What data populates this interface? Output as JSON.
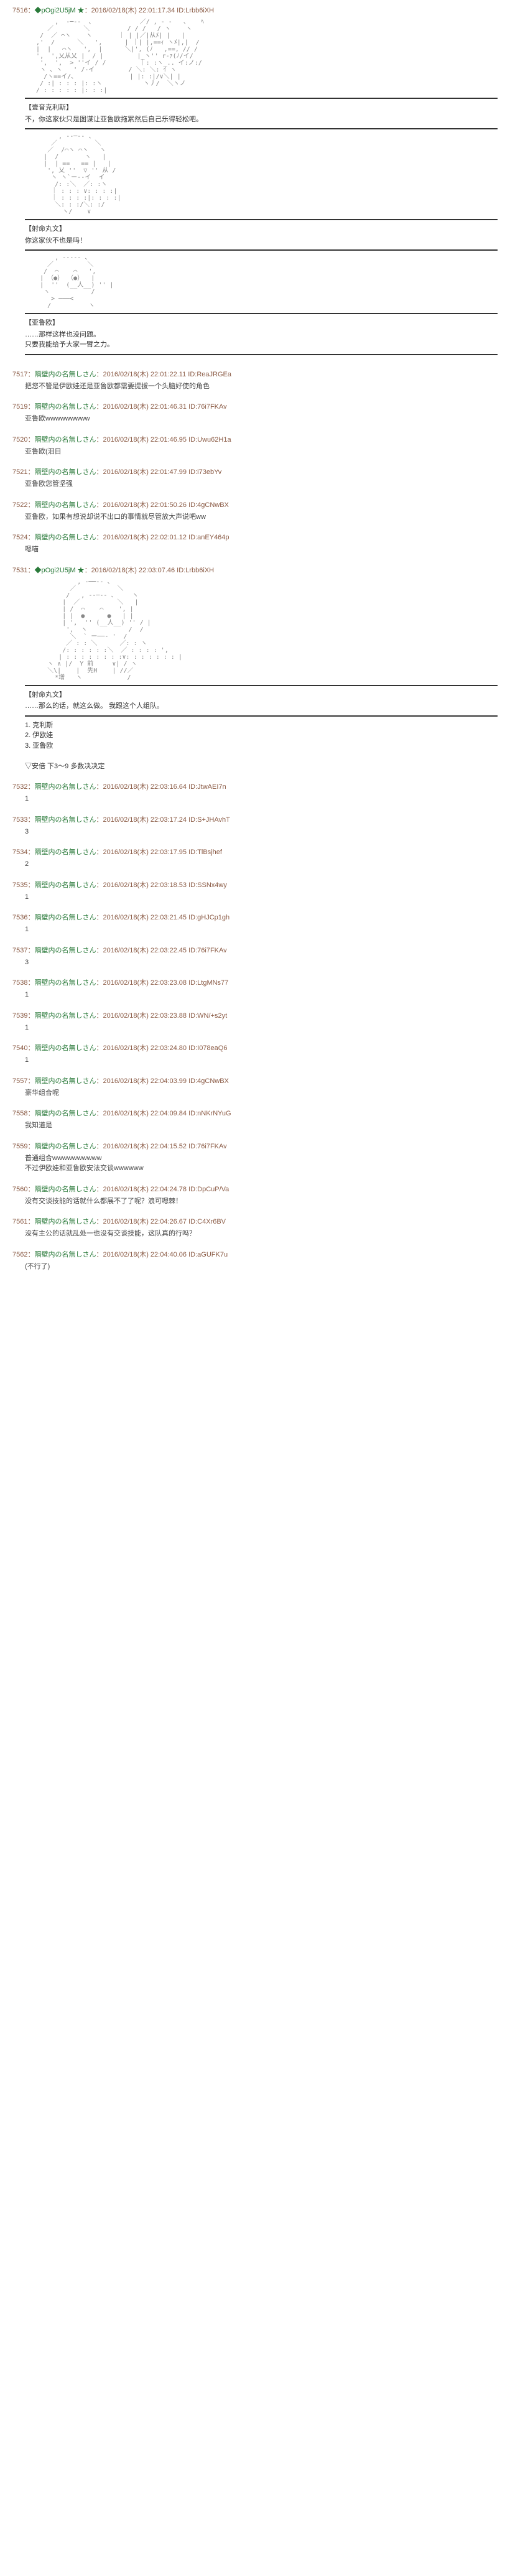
{
  "posts": [
    {
      "id": "7516",
      "name": "◆pOgi2U5jM ★",
      "date": "2016/02/18(木) 22:01:17.34",
      "uid": "ID:Lrbb6iXH",
      "aa1": "        ,  -─‐-  、            ／/ , - ‐   、   ﾍ\n      ／        ＼          / / /   / ヽ    ヽ\n    /  ／ ⌒ヽ    ヽ       ｜ | |／|从ﾒ| |   |\n   ,'  /      ＼   ',      | ｜| |,==ｨ ヽﾒ|,|  /\n   |  |   ⌒ヽ   ',  |      ＼|', (ﾉ   ,==, // /\n   ',  ',乂从乂 |  / |         |_ヽ'' r-ｧ(ﾉ/イ/\n    ',  ',  > ''イ / /         ｜: :ヽ_.. イ:ノ:/\n    ヽ 、ヽ   ' /-イ         / ＼: ＼: ｲ ヽ\n     /ヽ==イ/、              | |: :|/∨＼| |\n    / :| : : : |: :ヽ           ヽ丿/  ＼ヽノ\n   / : : : : : |: : :|",
      "speaker1": "【壹音克利斯】",
      "speech1": "不，你这家伙只是图谋让亚鲁欧拖累然后自己乐得轻松吧。",
      "aa2": "         , -‐─‐- 、\n       ／          ＼\n      ／  /⌒ヽ ⌒ヽ   ヽ\n     |  /       ヽ   |\n     |  | ==   == |   |\n      ', 乂 ''  ▽ '' 从 /\n       ヽ ヽ`ー--イ  イ\n        /: :＼  ／: :ヽ\n       ｜ : : : ∨: : : :|\n       ｜ : : : :|: : : :|\n        ＼: : :/＼: :/\n          ヽ/    ∨",
      "speaker2": "【射命丸文】",
      "speech2": "你这家伙不也是吗！",
      "aa3": "        , -‐‐‐- 、\n      ／         ＼\n     /  ⌒    ⌒   ',\n    | （●） （●）  |\n    |  ''  (__人__) '' |\n     ヽ           /\n       > ───<\n      /          ヽ",
      "speaker3": "【亚鲁欧】",
      "speech3": "……那样这样也没问题。\n只要我能给予大家一臂之力。"
    },
    {
      "id": "7517",
      "name": "隔壁内の名無しさん",
      "date": "2016/02/18(木) 22:01:22.11",
      "uid": "ID:ReaJRGEa",
      "body": "把您不管是伊欧娃还是亚鲁欧都需要提拔一个头脑好使的角色"
    },
    {
      "id": "7519",
      "name": "隔壁内の名無しさん",
      "date": "2016/02/18(木) 22:01:46.31",
      "uid": "ID:76i7FKAv",
      "body": "亚鲁欧wwwwwwwww"
    },
    {
      "id": "7520",
      "name": "隔壁内の名無しさん",
      "date": "2016/02/18(木) 22:01:46.95",
      "uid": "ID:Uwu62H1a",
      "body": "亚鲁欧(泪目"
    },
    {
      "id": "7521",
      "name": "隔壁内の名無しさん",
      "date": "2016/02/18(木) 22:01:47.99",
      "uid": "ID:i73ebYv",
      "body": "亚鲁欧您管坚强"
    },
    {
      "id": "7522",
      "name": "隔壁内の名無しさん",
      "date": "2016/02/18(木) 22:01:50.26",
      "uid": "ID:4gCNwBX",
      "body": "亚鲁欧，如果有想说却说不出口的事情就尽管放大声说吧ww"
    },
    {
      "id": "7524",
      "name": "隔壁内の名無しさん",
      "date": "2016/02/18(木) 22:02:01.12",
      "uid": "ID:anEY464p",
      "body": "嗯喵"
    },
    {
      "id": "7531",
      "name": "◆pOgi2U5jM ★",
      "date": "2016/02/18(木) 22:03:07.46",
      "uid": "ID:Lrbb6iXH",
      "aa1": "              , -──‐- 、\n            ／           ＼\n           /   , -‐─‐- 、    ヽ\n          |  ／          ＼   |\n          | /  ⌒    ⌒    ', |\n          | |  ●      ●   | |\n          | ',  '' (__人__) '' / |\n           ',  ヽ           /  /\n            ＼  ` ー──‐ '  /\n           ／ : : ＼      ／: : ヽ\n          /: : : : : :＼  ／ : : : : ',\n         | : : : : : : : :∨: : : : : : : |\n      ヽ ∧ |/  Y 前     ∨| / ヽ\n      ＼\\|    |  先H    | //／\n        *增   ヽ            /",
      "speaker1": "【射命丸文】",
      "speech1": "……那么的话，就这么做。\n我跟这个人组队。",
      "note": "1. 克利斯\n2. 伊欧娃\n3. 亚鲁欧\n\n▽安倍 下3～9 多数决决定"
    },
    {
      "id": "7532",
      "name": "隔壁内の名無しさん",
      "date": "2016/02/18(木) 22:03:16.64",
      "uid": "ID:JtwAEI7n",
      "body": "1"
    },
    {
      "id": "7533",
      "name": "隔壁内の名無しさん",
      "date": "2016/02/18(木) 22:03:17.24",
      "uid": "ID:S+JHAvhT",
      "body": "3"
    },
    {
      "id": "7534",
      "name": "隔壁内の名無しさん",
      "date": "2016/02/18(木) 22:03:17.95",
      "uid": "ID:TlBsjhef",
      "body": "2"
    },
    {
      "id": "7535",
      "name": "隔壁内の名無しさん",
      "date": "2016/02/18(木) 22:03:18.53",
      "uid": "ID:SSNx4wy",
      "body": "1"
    },
    {
      "id": "7536",
      "name": "隔壁内の名無しさん",
      "date": "2016/02/18(木) 22:03:21.45",
      "uid": "ID:gHJCp1gh",
      "body": "1"
    },
    {
      "id": "7537",
      "name": "隔壁内の名無しさん",
      "date": "2016/02/18(木) 22:03:22.45",
      "uid": "ID:76i7FKAv",
      "body": "3"
    },
    {
      "id": "7538",
      "name": "隔壁内の名無しさん",
      "date": "2016/02/18(木) 22:03:23.08",
      "uid": "ID:LtgMNs77",
      "body": "1"
    },
    {
      "id": "7539",
      "name": "隔壁内の名無しさん",
      "date": "2016/02/18(木) 22:03:23.88",
      "uid": "ID:WN/+s2yt",
      "body": "1"
    },
    {
      "id": "7540",
      "name": "隔壁内の名無しさん",
      "date": "2016/02/18(木) 22:03:24.80",
      "uid": "ID:I078eaQ6",
      "body": "1"
    },
    {
      "id": "7557",
      "name": "隔壁内の名無しさん",
      "date": "2016/02/18(木) 22:04:03.99",
      "uid": "ID:4gCNwBX",
      "body": "豪华组合呢"
    },
    {
      "id": "7558",
      "name": "隔壁内の名無しさん",
      "date": "2016/02/18(木) 22:04:09.84",
      "uid": "ID:nNKrNYuG",
      "body": "我知道是"
    },
    {
      "id": "7559",
      "name": "隔壁内の名無しさん",
      "date": "2016/02/18(木) 22:04:15.52",
      "uid": "ID:76i7FKAv",
      "body": "普通组合wwwwwwwwww\n不过伊欧娃和亚鲁欧安法交谈wwwwww"
    },
    {
      "id": "7560",
      "name": "隔壁内の名無しさん",
      "date": "2016/02/18(木) 22:04:24.78",
      "uid": "ID:DpCuP/Va",
      "body": "没有交谈技能的话就什么都展不了了呢？浪可嗯棘！"
    },
    {
      "id": "7561",
      "name": "隔壁内の名無しさん",
      "date": "2016/02/18(木) 22:04:26.67",
      "uid": "ID:C4Xr6BV",
      "body": "没有主公的话就乱处一也没有交谈技能，这队真的行吗？"
    },
    {
      "id": "7562",
      "name": "隔壁内の名無しさん",
      "date": "2016/02/18(木) 22:04:40.06",
      "uid": "ID:aGUFK7u",
      "body": "(不行了)"
    }
  ]
}
